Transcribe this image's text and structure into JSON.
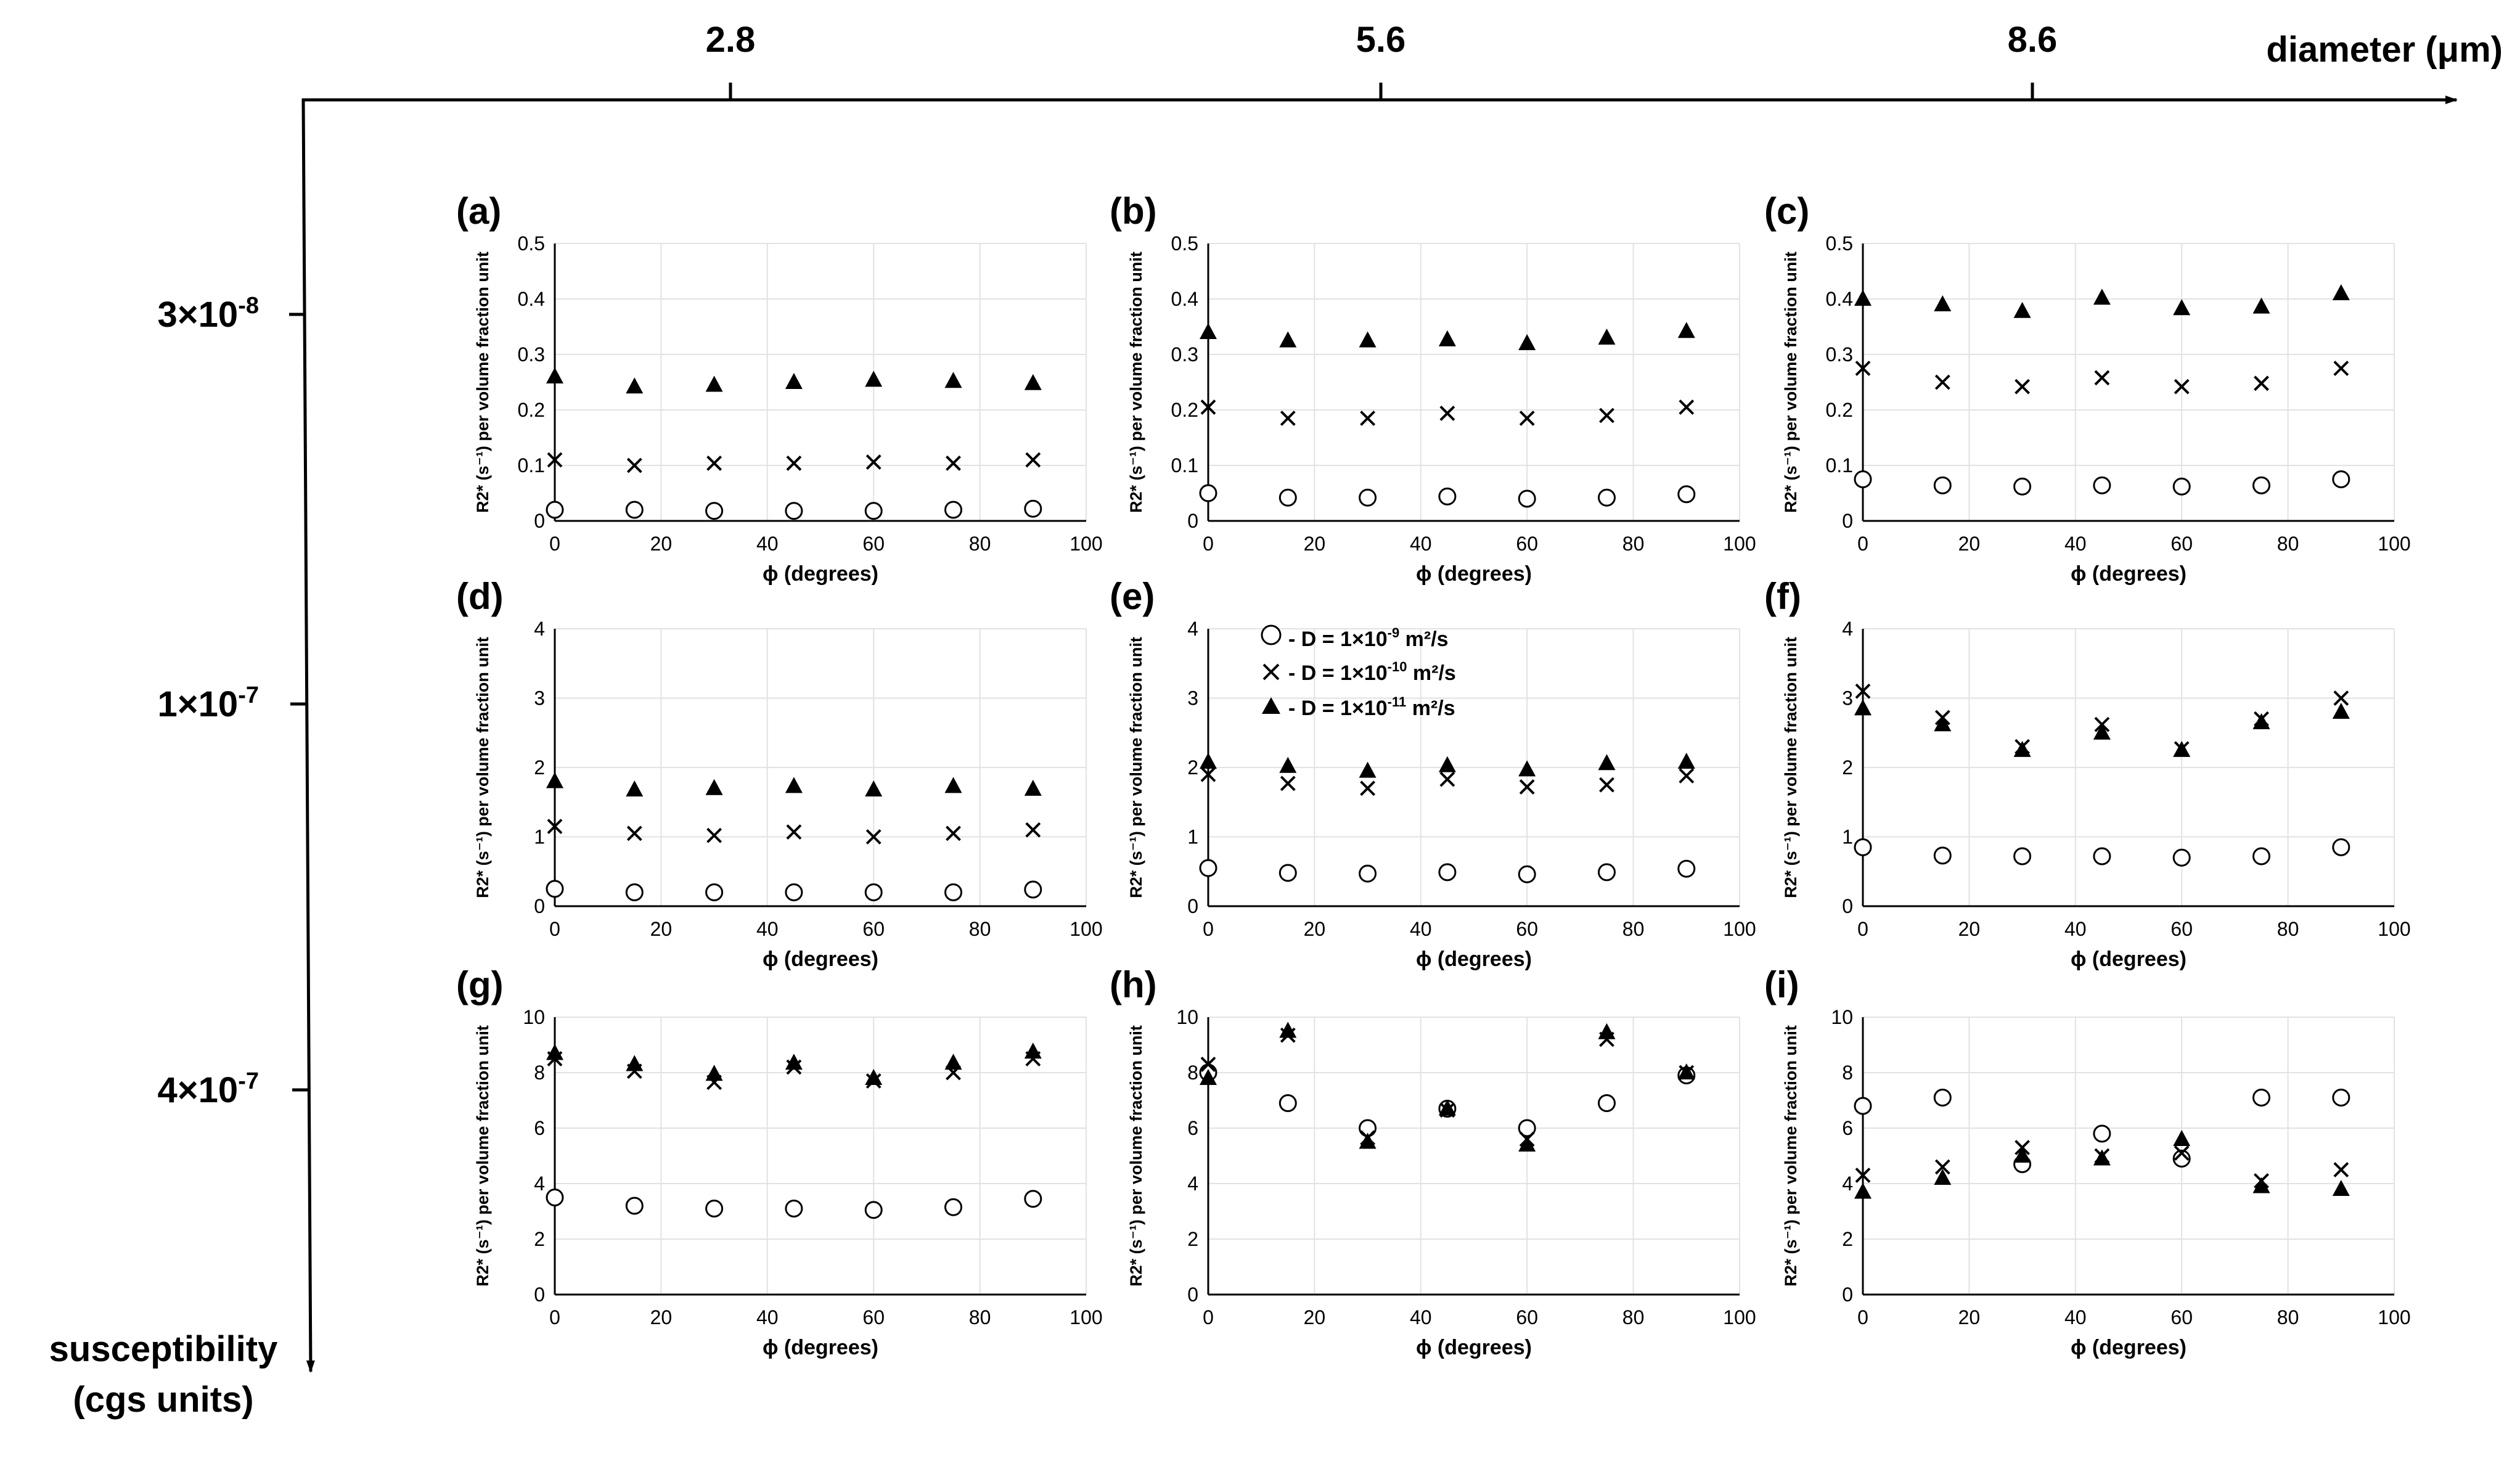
{
  "figure": {
    "x_axis": {
      "label": "diameter (μm)",
      "ticks": [
        "2.8",
        "5.6",
        "8.6"
      ]
    },
    "y_axis": {
      "label_line1": "susceptibility",
      "label_line2": "(cgs units)",
      "ticks": [
        "3×10",
        "1×10",
        "4×10"
      ],
      "tick_exponents": [
        "-8",
        "-7",
        "-7"
      ]
    }
  },
  "legend": {
    "entries": [
      {
        "marker": "circle-open",
        "prefix": "- D = 1×10",
        "exponent": "-9",
        "suffix": " m²/s"
      },
      {
        "marker": "cross",
        "prefix": "- D = 1×10",
        "exponent": "-10",
        "suffix": " m²/s"
      },
      {
        "marker": "triangle-filled",
        "prefix": "- D = 1×10",
        "exponent": "-11",
        "suffix": " m²/s"
      }
    ]
  },
  "chart_data": [
    {
      "type": "scatter",
      "panel_label": "(a)",
      "xlabel": "ϕ (degrees)",
      "ylabel": "R2* (s⁻¹) per volume fraction unit",
      "xlim": [
        0,
        100
      ],
      "ylim": [
        0,
        0.5
      ],
      "xticks": [
        "0",
        "20",
        "40",
        "60",
        "80",
        "100"
      ],
      "yticks": [
        "0",
        "0.1",
        "0.2",
        "0.3",
        "0.4",
        "0.5"
      ],
      "grid": true,
      "x": [
        0,
        15,
        30,
        45,
        60,
        75,
        90
      ],
      "series": [
        {
          "marker": "circle-open",
          "values": [
            0.02,
            0.02,
            0.018,
            0.018,
            0.018,
            0.02,
            0.022
          ]
        },
        {
          "marker": "cross",
          "values": [
            0.11,
            0.1,
            0.104,
            0.104,
            0.106,
            0.104,
            0.11
          ]
        },
        {
          "marker": "triangle-filled",
          "values": [
            0.26,
            0.242,
            0.245,
            0.25,
            0.254,
            0.252,
            0.248
          ]
        }
      ]
    },
    {
      "type": "scatter",
      "panel_label": "(b)",
      "xlabel": "ϕ (degrees)",
      "ylabel": "R2* (s⁻¹) per volume fraction unit",
      "xlim": [
        0,
        100
      ],
      "ylim": [
        0,
        0.5
      ],
      "xticks": [
        "0",
        "20",
        "40",
        "60",
        "80",
        "100"
      ],
      "yticks": [
        "0",
        "0.1",
        "0.2",
        "0.3",
        "0.4",
        "0.5"
      ],
      "grid": true,
      "x": [
        0,
        15,
        30,
        45,
        60,
        75,
        90
      ],
      "series": [
        {
          "marker": "circle-open",
          "values": [
            0.05,
            0.042,
            0.042,
            0.044,
            0.04,
            0.042,
            0.048
          ]
        },
        {
          "marker": "cross",
          "values": [
            0.205,
            0.185,
            0.185,
            0.194,
            0.185,
            0.19,
            0.205
          ]
        },
        {
          "marker": "triangle-filled",
          "values": [
            0.34,
            0.325,
            0.325,
            0.327,
            0.32,
            0.33,
            0.342
          ]
        }
      ]
    },
    {
      "type": "scatter",
      "panel_label": "(c)",
      "xlabel": "ϕ (degrees)",
      "ylabel": "R2* (s⁻¹) per volume fraction unit",
      "xlim": [
        0,
        100
      ],
      "ylim": [
        0,
        0.5
      ],
      "xticks": [
        "0",
        "20",
        "40",
        "60",
        "80",
        "100"
      ],
      "yticks": [
        "0",
        "0.1",
        "0.2",
        "0.3",
        "0.4",
        "0.5"
      ],
      "grid": true,
      "x": [
        0,
        15,
        30,
        45,
        60,
        75,
        90
      ],
      "series": [
        {
          "marker": "circle-open",
          "values": [
            0.075,
            0.064,
            0.062,
            0.064,
            0.062,
            0.064,
            0.075
          ]
        },
        {
          "marker": "cross",
          "values": [
            0.275,
            0.25,
            0.242,
            0.258,
            0.242,
            0.248,
            0.275
          ]
        },
        {
          "marker": "triangle-filled",
          "values": [
            0.4,
            0.39,
            0.378,
            0.402,
            0.383,
            0.386,
            0.41
          ]
        }
      ]
    },
    {
      "type": "scatter",
      "panel_label": "(d)",
      "xlabel": "ϕ (degrees)",
      "ylabel": "R2* (s⁻¹) per volume fraction unit",
      "xlim": [
        0,
        100
      ],
      "ylim": [
        0,
        4
      ],
      "xticks": [
        "0",
        "20",
        "40",
        "60",
        "80",
        "100"
      ],
      "yticks": [
        "0",
        "1",
        "2",
        "3",
        "4"
      ],
      "grid": true,
      "x": [
        0,
        15,
        30,
        45,
        60,
        75,
        90
      ],
      "series": [
        {
          "marker": "circle-open",
          "values": [
            0.25,
            0.2,
            0.2,
            0.2,
            0.2,
            0.2,
            0.24
          ]
        },
        {
          "marker": "cross",
          "values": [
            1.15,
            1.05,
            1.02,
            1.07,
            1.0,
            1.05,
            1.1
          ]
        },
        {
          "marker": "triangle-filled",
          "values": [
            1.8,
            1.68,
            1.7,
            1.73,
            1.68,
            1.73,
            1.69
          ]
        }
      ]
    },
    {
      "type": "scatter",
      "panel_label": "(e)",
      "xlabel": "ϕ (degrees)",
      "ylabel": "R2* (s⁻¹) per volume fraction unit",
      "xlim": [
        0,
        100
      ],
      "ylim": [
        0,
        4
      ],
      "xticks": [
        "0",
        "20",
        "40",
        "60",
        "80",
        "100"
      ],
      "yticks": [
        "0",
        "1",
        "2",
        "3",
        "4"
      ],
      "grid": true,
      "x": [
        0,
        15,
        30,
        45,
        60,
        75,
        90
      ],
      "series": [
        {
          "marker": "circle-open",
          "values": [
            0.55,
            0.48,
            0.47,
            0.49,
            0.46,
            0.49,
            0.54
          ]
        },
        {
          "marker": "cross",
          "values": [
            1.9,
            1.77,
            1.7,
            1.83,
            1.72,
            1.75,
            1.88
          ]
        },
        {
          "marker": "triangle-filled",
          "values": [
            2.08,
            2.02,
            1.95,
            2.03,
            1.97,
            2.06,
            2.08
          ]
        }
      ]
    },
    {
      "type": "scatter",
      "panel_label": "(f)",
      "xlabel": "ϕ (degrees)",
      "ylabel": "R2* (s⁻¹) per volume fraction unit",
      "xlim": [
        0,
        100
      ],
      "ylim": [
        0,
        4
      ],
      "xticks": [
        "0",
        "20",
        "40",
        "60",
        "80",
        "100"
      ],
      "yticks": [
        "0",
        "1",
        "2",
        "3",
        "4"
      ],
      "grid": true,
      "x": [
        0,
        15,
        30,
        45,
        60,
        75,
        90
      ],
      "series": [
        {
          "marker": "circle-open",
          "values": [
            0.85,
            0.73,
            0.72,
            0.72,
            0.7,
            0.72,
            0.85
          ]
        },
        {
          "marker": "cross",
          "values": [
            3.1,
            2.72,
            2.3,
            2.62,
            2.27,
            2.7,
            3.0
          ]
        },
        {
          "marker": "triangle-filled",
          "values": [
            2.85,
            2.62,
            2.25,
            2.5,
            2.25,
            2.65,
            2.8
          ]
        }
      ]
    },
    {
      "type": "scatter",
      "panel_label": "(g)",
      "xlabel": "ϕ (degrees)",
      "ylabel": "R2* (s⁻¹) per volume fraction unit",
      "xlim": [
        0,
        100
      ],
      "ylim": [
        0,
        10
      ],
      "xticks": [
        "0",
        "20",
        "40",
        "60",
        "80",
        "100"
      ],
      "yticks": [
        "0",
        "2",
        "4",
        "6",
        "8",
        "10"
      ],
      "grid": true,
      "x": [
        0,
        15,
        30,
        45,
        60,
        75,
        90
      ],
      "series": [
        {
          "marker": "circle-open",
          "values": [
            3.5,
            3.2,
            3.1,
            3.1,
            3.05,
            3.15,
            3.45
          ]
        },
        {
          "marker": "cross",
          "values": [
            8.5,
            8.05,
            7.65,
            8.2,
            7.7,
            8.0,
            8.5
          ]
        },
        {
          "marker": "triangle-filled",
          "values": [
            8.7,
            8.3,
            7.95,
            8.35,
            7.8,
            8.35,
            8.75
          ]
        }
      ]
    },
    {
      "type": "scatter",
      "panel_label": "(h)",
      "xlabel": "ϕ (degrees)",
      "ylabel": "R2* (s⁻¹) per volume fraction unit",
      "xlim": [
        0,
        100
      ],
      "ylim": [
        0,
        10
      ],
      "xticks": [
        "0",
        "20",
        "40",
        "60",
        "80",
        "100"
      ],
      "yticks": [
        "0",
        "2",
        "4",
        "6",
        "8",
        "10"
      ],
      "grid": true,
      "x": [
        0,
        15,
        30,
        45,
        60,
        75,
        90
      ],
      "series": [
        {
          "marker": "circle-open",
          "values": [
            8.0,
            6.9,
            6.0,
            6.7,
            6.0,
            6.9,
            7.9
          ]
        },
        {
          "marker": "cross",
          "values": [
            8.3,
            9.35,
            5.65,
            6.65,
            5.6,
            9.2,
            8.0
          ]
        },
        {
          "marker": "triangle-filled",
          "values": [
            7.8,
            9.5,
            5.5,
            6.7,
            5.4,
            9.45,
            8.0
          ]
        }
      ]
    },
    {
      "type": "scatter",
      "panel_label": "(i)",
      "xlabel": "ϕ (degrees)",
      "ylabel": "R2* (s⁻¹) per volume fraction unit",
      "xlim": [
        0,
        100
      ],
      "ylim": [
        0,
        10
      ],
      "xticks": [
        "0",
        "20",
        "40",
        "60",
        "80",
        "100"
      ],
      "yticks": [
        "0",
        "2",
        "4",
        "6",
        "8",
        "10"
      ],
      "grid": true,
      "x": [
        0,
        15,
        30,
        45,
        60,
        75,
        90
      ],
      "series": [
        {
          "marker": "circle-open",
          "values": [
            6.8,
            7.1,
            4.7,
            5.8,
            4.9,
            7.1,
            7.1
          ]
        },
        {
          "marker": "cross",
          "values": [
            4.3,
            4.6,
            5.3,
            5.0,
            5.1,
            4.1,
            4.5
          ]
        },
        {
          "marker": "triangle-filled",
          "values": [
            3.7,
            4.2,
            5.0,
            4.9,
            5.6,
            3.9,
            3.8
          ]
        }
      ]
    }
  ]
}
